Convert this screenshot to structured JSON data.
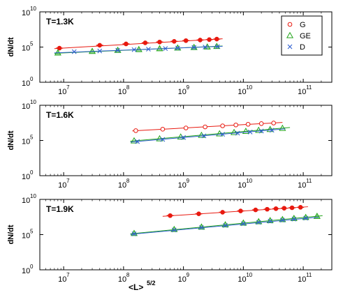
{
  "figure": {
    "shared_xlabel": "<L>",
    "shared_xlabel_exponent": "5/2"
  },
  "colors": {
    "G": "#e8190f",
    "GE": "#22a51a",
    "D": "#2f5fd0",
    "fit_G": "#e8190f",
    "fit_GE": "#22a51a",
    "fit_D": "#2f5fd0"
  },
  "legend": {
    "placement": "top-right",
    "panel": 0,
    "entries": [
      {
        "key": "G",
        "label": "G",
        "marker": "circle"
      },
      {
        "key": "GE",
        "label": "GE",
        "marker": "triangle"
      },
      {
        "key": "D",
        "label": "D",
        "marker": "x"
      }
    ]
  },
  "chart_data": [
    {
      "type": "scatter",
      "title": "T=1.3K",
      "ylabel": "dN/dt",
      "xscale": "log",
      "yscale": "log",
      "xlim": [
        4000000.0,
        300000000000.0
      ],
      "ylim": [
        1,
        10000000000.0
      ],
      "xticks": [
        10000000.0,
        100000000.0,
        1000000000.0,
        10000000000.0,
        100000000000.0
      ],
      "xtick_labels": [
        {
          "base": "10",
          "exp": "7"
        },
        {
          "base": "10",
          "exp": "8"
        },
        {
          "base": "10",
          "exp": "9"
        },
        {
          "base": "10",
          "exp": "10"
        },
        {
          "base": "10",
          "exp": "11"
        }
      ],
      "yticks": [
        1,
        100000.0,
        10000000000.0
      ],
      "ytick_labels": [
        {
          "base": "10",
          "exp": "0"
        },
        {
          "base": "10",
          "exp": "5"
        },
        {
          "base": "10",
          "exp": "10"
        }
      ],
      "series": [
        {
          "name": "G",
          "marker": "circle",
          "filled": true,
          "x": [
            8500000.0,
            40000000.0,
            110000000.0,
            230000000.0,
            400000000.0,
            700000000.0,
            1100000000.0,
            1900000000.0,
            2700000000.0,
            3600000000.0
          ],
          "y": [
            70000,
            180000,
            280000,
            400000,
            520000,
            650000,
            820000,
            1000000,
            1150000,
            1350000
          ],
          "fit": [
            [
              7000000.0,
              60000
            ],
            [
              4500000000.0,
              1500000
            ]
          ]
        },
        {
          "name": "GE",
          "marker": "triangle",
          "filled": true,
          "x": [
            8000000.0,
            30000000.0,
            80000000.0,
            180000000.0,
            400000000.0,
            800000000.0,
            1500000000.0,
            2500000000.0,
            3600000000.0
          ],
          "y": [
            15000,
            25000,
            35000,
            45000,
            60000,
            75000,
            90000,
            105000,
            125000
          ],
          "fit": [
            [
              7000000.0,
              13000
            ],
            [
              4500000000.0,
              140000
            ]
          ]
        },
        {
          "name": "D",
          "marker": "x",
          "filled": false,
          "x": [
            15000000.0,
            40000000.0,
            80000000.0,
            150000000.0,
            260000000.0,
            500000000.0,
            800000000.0,
            1500000000.0,
            2300000000.0,
            3700000000.0
          ],
          "y": [
            22000,
            28000,
            35000,
            43000,
            50000,
            62000,
            72000,
            88000,
            100000,
            115000
          ],
          "fit": [
            [
              7000000.0,
              15000
            ],
            [
              4500000000.0,
              130000
            ]
          ]
        }
      ]
    },
    {
      "type": "scatter",
      "title": "T=1.6K",
      "ylabel": "dN/dt",
      "xscale": "log",
      "yscale": "log",
      "xlim": [
        4000000.0,
        300000000000.0
      ],
      "ylim": [
        1,
        10000000000.0
      ],
      "xticks": [
        10000000.0,
        100000000.0,
        1000000000.0,
        10000000000.0,
        100000000000.0
      ],
      "xtick_labels": [
        {
          "base": "10",
          "exp": "7"
        },
        {
          "base": "10",
          "exp": "8"
        },
        {
          "base": "10",
          "exp": "9"
        },
        {
          "base": "10",
          "exp": "10"
        },
        {
          "base": "10",
          "exp": "11"
        }
      ],
      "yticks": [
        1,
        100000.0,
        10000000000.0
      ],
      "ytick_labels": [
        {
          "base": "10",
          "exp": "0"
        },
        {
          "base": "10",
          "exp": "5"
        },
        {
          "base": "10",
          "exp": "10"
        }
      ],
      "series": [
        {
          "name": "G",
          "marker": "circle",
          "filled": false,
          "x": [
            160000000.0,
            450000000.0,
            1100000000.0,
            2300000000.0,
            4500000000.0,
            7500000000.0,
            12000000000.0,
            20000000000.0,
            32000000000.0
          ],
          "y": [
            2500000,
            4000000,
            6000000,
            8500000,
            12000000,
            16000000,
            20000000,
            25000000,
            30000000
          ],
          "fit": [
            [
              140000000.0,
              2300000
            ],
            [
              45000000000.0,
              36000000
            ]
          ]
        },
        {
          "name": "GE",
          "marker": "triangle",
          "filled": false,
          "x": [
            150000000.0,
            400000000.0,
            900000000.0,
            2000000000.0,
            4000000000.0,
            7000000000.0,
            11000000000.0,
            18000000000.0,
            28000000000.0,
            45000000000.0
          ],
          "y": [
            90000,
            180000,
            320000,
            550000,
            900000,
            1400000,
            2000000,
            2800000,
            3800000,
            5500000
          ],
          "fit": [
            [
              130000000.0,
              80000
            ],
            [
              60000000000.0,
              7000000
            ]
          ]
        },
        {
          "name": "D",
          "marker": "x",
          "filled": false,
          "x": [
            170000000.0,
            450000000.0,
            1000000000.0,
            2200000000.0,
            4500000000.0,
            8000000000.0,
            13000000000.0,
            20000000000.0,
            30000000000.0
          ],
          "y": [
            70000,
            140000,
            260000,
            450000,
            750000,
            1100000,
            1600000,
            2200000,
            2900000
          ],
          "fit": [
            [
              130000000.0,
              60000
            ],
            [
              50000000000.0,
              4500000
            ]
          ]
        }
      ]
    },
    {
      "type": "scatter",
      "title": "T=1.9K",
      "ylabel": "dN/dt",
      "xscale": "log",
      "yscale": "log",
      "xlim": [
        4000000.0,
        300000000000.0
      ],
      "ylim": [
        1,
        10000000000.0
      ],
      "xticks": [
        10000000.0,
        100000000.0,
        1000000000.0,
        10000000000.0,
        100000000000.0
      ],
      "xtick_labels": [
        {
          "base": "10",
          "exp": "7"
        },
        {
          "base": "10",
          "exp": "8"
        },
        {
          "base": "10",
          "exp": "9"
        },
        {
          "base": "10",
          "exp": "10"
        },
        {
          "base": "10",
          "exp": "11"
        }
      ],
      "yticks": [
        1,
        100000.0,
        10000000000.0
      ],
      "ytick_labels": [
        {
          "base": "10",
          "exp": "0"
        },
        {
          "base": "10",
          "exp": "5"
        },
        {
          "base": "10",
          "exp": "10"
        }
      ],
      "series": [
        {
          "name": "G",
          "marker": "circle",
          "filled": true,
          "x": [
            600000000.0,
            1800000000.0,
            4500000000.0,
            9000000000.0,
            16000000000.0,
            25000000000.0,
            35000000000.0,
            48000000000.0,
            65000000000.0,
            90000000000.0
          ],
          "y": [
            50000000,
            90000000,
            150000000,
            230000000,
            320000000,
            400000000,
            480000000,
            560000000,
            650000000,
            750000000
          ],
          "fit": [
            [
              450000000.0,
              40000000
            ],
            [
              120000000000.0,
              900000000
            ]
          ]
        },
        {
          "name": "GE",
          "marker": "triangle",
          "filled": true,
          "x": [
            150000000.0,
            700000000.0,
            2000000000.0,
            5000000000.0,
            10000000000.0,
            18000000000.0,
            28000000000.0,
            45000000000.0,
            70000000000.0,
            110000000000.0,
            170000000000.0
          ],
          "y": [
            150000,
            550000,
            1200000,
            2500000,
            4500000,
            7000000,
            10000000,
            14000000,
            20000000,
            28000000,
            40000000
          ],
          "fit": [
            [
              130000000.0,
              130000
            ],
            [
              210000000000.0,
              48000000
            ]
          ]
        },
        {
          "name": "D",
          "marker": "x",
          "filled": false,
          "x": [
            150000000.0,
            700000000.0,
            2000000000.0,
            5000000000.0,
            10000000000.0,
            18000000000.0,
            28000000000.0,
            45000000000.0,
            70000000000.0,
            110000000000.0
          ],
          "y": [
            130000,
            450000,
            1000000,
            2000000,
            3500000,
            5500000,
            8000000,
            11500000,
            16000000,
            22000000
          ],
          "fit": [
            [
              130000000.0,
              110000
            ],
            [
              180000000000.0,
              30000000
            ]
          ]
        }
      ]
    }
  ]
}
